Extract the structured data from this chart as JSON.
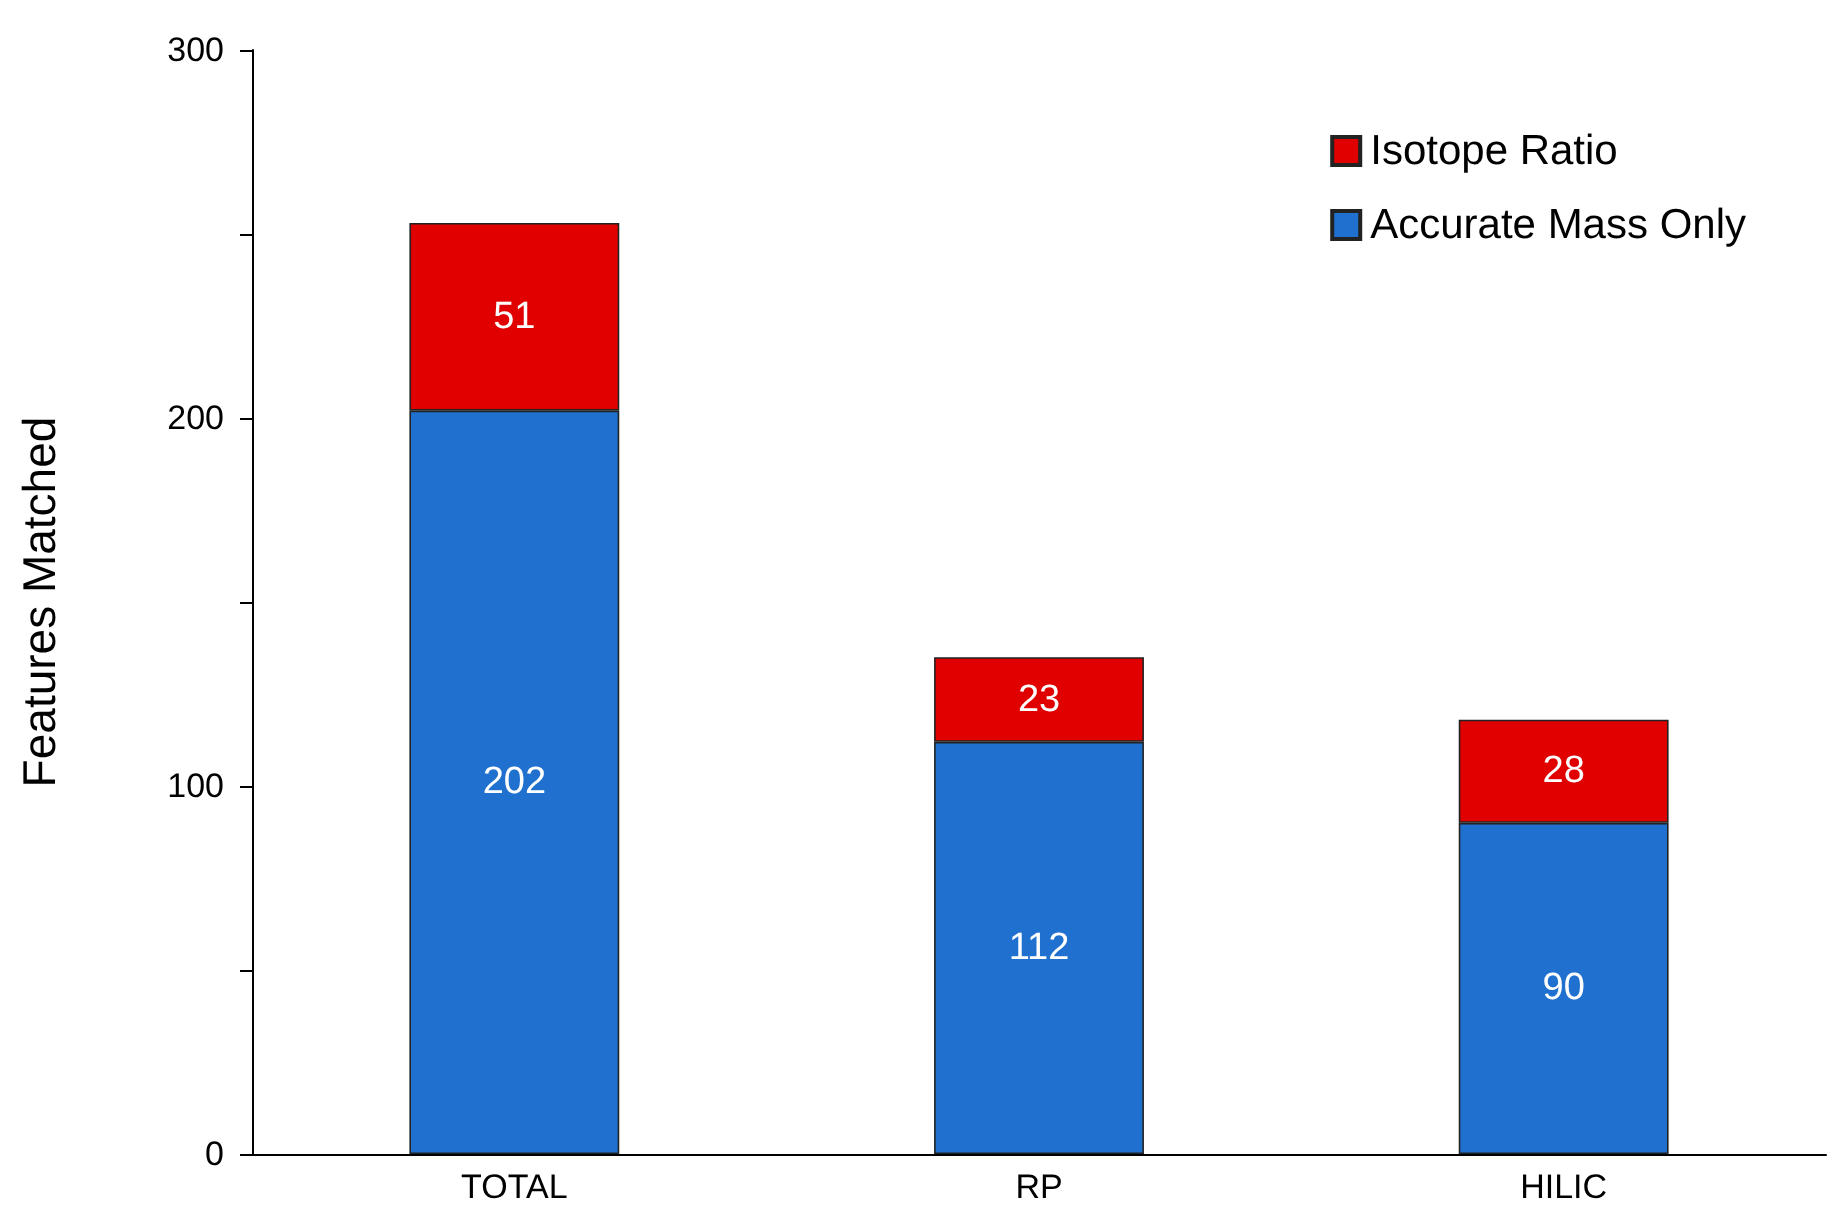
{
  "chart_data": {
    "type": "bar",
    "ylabel": "Features Matched",
    "categories": [
      "TOTAL",
      "RP",
      "HILIC"
    ],
    "series": [
      {
        "name": "Accurate Mass Only",
        "color": "#1f70cf",
        "values": [
          202,
          112,
          90
        ]
      },
      {
        "name": "Isotope Ratio",
        "color": "#e00000",
        "values": [
          51,
          23,
          28
        ]
      }
    ],
    "stacked": true,
    "data_labels": true,
    "ylim": [
      0,
      300
    ],
    "yticks": [
      0,
      {
        "value": 50,
        "label": null
      },
      100,
      {
        "value": 150,
        "label": null
      },
      200,
      {
        "value": 250,
        "label": null
      },
      300
    ],
    "grid": false,
    "legend": "top right"
  }
}
